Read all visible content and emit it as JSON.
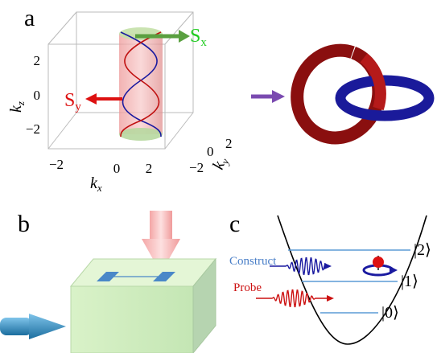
{
  "panels": {
    "a": {
      "label": "a",
      "spins": {
        "sx": {
          "base": "S",
          "sub": "x"
        },
        "sy": {
          "base": "S",
          "sub": "y"
        }
      },
      "axes": {
        "z": {
          "base": "k",
          "sub": "z",
          "ticks": [
            "2",
            "0",
            "−2"
          ]
        },
        "x": {
          "base": "k",
          "sub": "x",
          "ticks": [
            "−2",
            "0",
            "2"
          ]
        },
        "y": {
          "base": "k",
          "sub": "y",
          "ticks": [
            "−2",
            "0",
            "2"
          ]
        }
      }
    },
    "b": {
      "label": "b"
    },
    "c": {
      "label": "c",
      "construct": "Construct",
      "probe": "Probe",
      "levels": [
        "|2⟩",
        "|1⟩",
        "|0⟩"
      ]
    }
  }
}
